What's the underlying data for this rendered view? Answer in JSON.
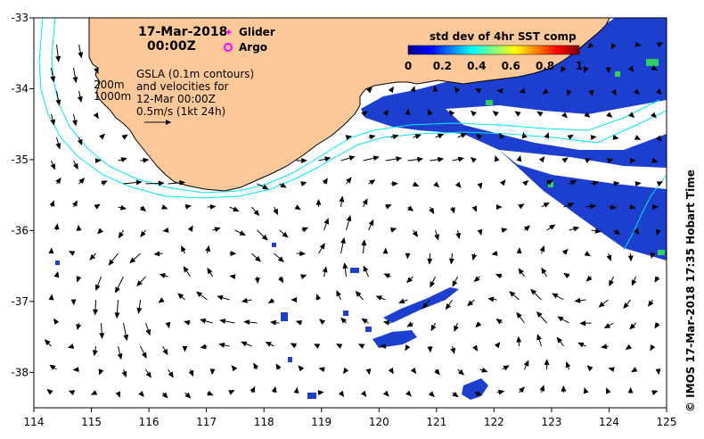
{
  "map": {
    "date_title": "17-Mar-2018",
    "time_title": "00:00Z",
    "glider_label": "Glider",
    "argo_label": "Argo",
    "gsla_line1": "GSLA (0.1m contours)",
    "gsla_line2": "and velocities for",
    "gsla_line3": "12-Mar 00:00Z",
    "scale_label": "0.5m/s (1kt 24h)",
    "depth_200": "200m",
    "depth_1000": "1000m",
    "credit": "© IMOS 17-Mar-2018 17:35 Hobart Time",
    "colorbar": {
      "title": "std dev of 4hr SST comp",
      "tick_labels": [
        "0",
        "0.2",
        "0.4",
        "0.6",
        "0.8",
        "1"
      ],
      "colors": [
        "#00008f",
        "#0000ff",
        "#0080ff",
        "#00ffff",
        "#80ff80",
        "#ffff00",
        "#ff8000",
        "#ff0000",
        "#800000"
      ]
    },
    "colors": {
      "land": "#fcc899",
      "ocean": "#ffffff",
      "bathymetry": "#00e5ee",
      "sst_data": "#1c3fd0",
      "glider_marker": "#ff00ff",
      "argo_marker": "#ff00ff"
    },
    "x_ticks": [
      "114",
      "115",
      "116",
      "117",
      "118",
      "119",
      "120",
      "121",
      "122",
      "123",
      "124",
      "125"
    ],
    "y_ticks": [
      "-33",
      "-34",
      "-35",
      "-36",
      "-37",
      "-38"
    ],
    "x_range": [
      114,
      125
    ],
    "y_range": [
      -38.5,
      -33
    ]
  }
}
